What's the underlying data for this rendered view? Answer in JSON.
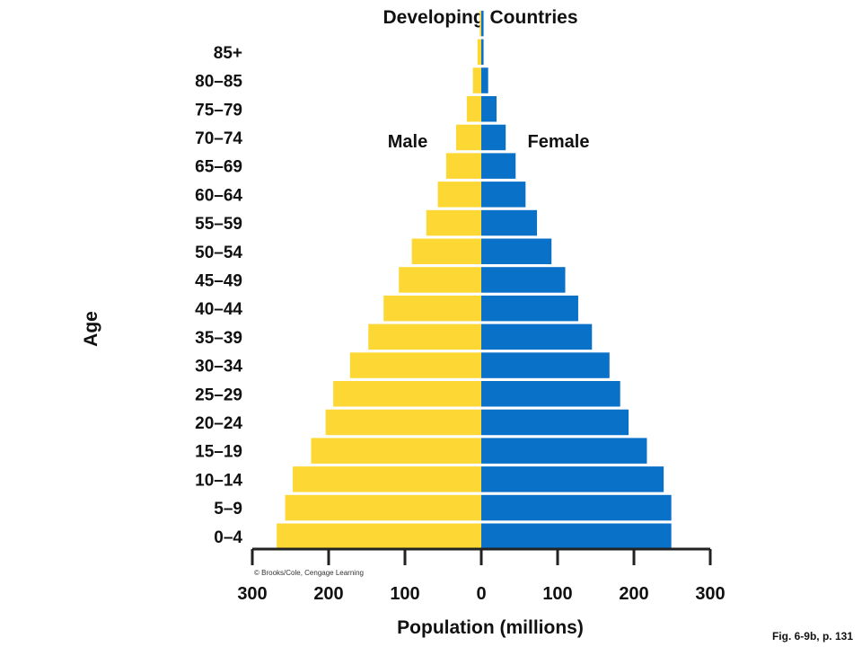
{
  "chart_data": {
    "type": "bar",
    "orientation": "horizontal-pyramid",
    "title": "Developing Countries",
    "xlabel": "Population (millions)",
    "ylabel": "Age",
    "x_ticks": [
      300,
      200,
      100,
      0,
      100,
      200,
      300
    ],
    "xlim": [
      -300,
      300
    ],
    "categories": [
      "0–4",
      "5–9",
      "10–14",
      "15–19",
      "20–24",
      "25–29",
      "30–34",
      "35–39",
      "40–44",
      "45–49",
      "50–54",
      "55–59",
      "60–64",
      "65–69",
      "70–74",
      "75–79",
      "80–85",
      "85+"
    ],
    "series": [
      {
        "name": "Male",
        "color": "#fdd835",
        "values": [
          268,
          257,
          247,
          223,
          204,
          194,
          172,
          148,
          128,
          108,
          91,
          72,
          57,
          46,
          33,
          19,
          11,
          5
        ]
      },
      {
        "name": "Female",
        "color": "#0a71c9",
        "values": [
          249,
          249,
          239,
          217,
          193,
          182,
          168,
          145,
          127,
          110,
          92,
          73,
          58,
          45,
          32,
          20,
          9,
          3
        ]
      }
    ],
    "extra_top_bar": {
      "male": 2,
      "female": 3
    },
    "grid": false,
    "credit": "© Brooks/Cole, Cengage Learning",
    "figure_ref": "Fig. 6-9b, p. 131"
  }
}
